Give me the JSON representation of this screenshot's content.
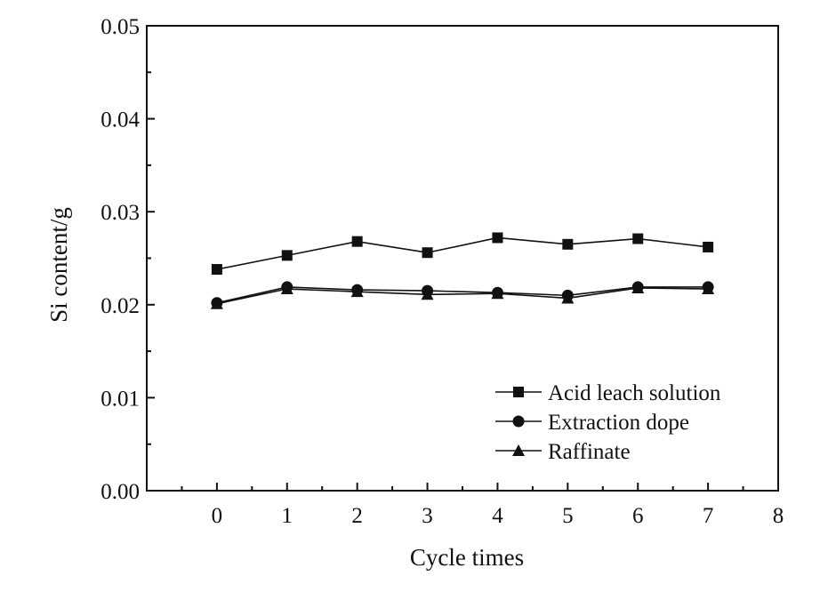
{
  "chart_data": {
    "type": "line",
    "xlabel": "Cycle times",
    "ylabel": "Si content/g",
    "xlim": [
      -1,
      8
    ],
    "ylim": [
      0,
      0.05
    ],
    "x_ticks": [
      0,
      1,
      2,
      3,
      4,
      5,
      6,
      7,
      8
    ],
    "x_tick_labels": [
      "0",
      "1",
      "2",
      "3",
      "4",
      "5",
      "6",
      "7",
      "8"
    ],
    "y_ticks": [
      0,
      0.01,
      0.02,
      0.03,
      0.04,
      0.05
    ],
    "y_tick_labels": [
      "0.00",
      "0.01",
      "0.02",
      "0.03",
      "0.04",
      "0.05"
    ],
    "grid": false,
    "legend_position": "bottom-right",
    "x": [
      0,
      1,
      2,
      3,
      4,
      5,
      6,
      7
    ],
    "series": [
      {
        "name": "Acid leach solution",
        "marker": "square",
        "color": "#111111",
        "values": [
          0.0238,
          0.0253,
          0.0268,
          0.0256,
          0.0272,
          0.0265,
          0.0271,
          0.0262
        ]
      },
      {
        "name": "Extraction dope",
        "marker": "circle",
        "color": "#111111",
        "values": [
          0.0202,
          0.0219,
          0.0216,
          0.0215,
          0.0213,
          0.021,
          0.0219,
          0.0219
        ]
      },
      {
        "name": "Raffinate",
        "marker": "triangle",
        "color": "#111111",
        "values": [
          0.0201,
          0.0217,
          0.0214,
          0.0211,
          0.0212,
          0.0207,
          0.0218,
          0.0217
        ]
      }
    ]
  }
}
